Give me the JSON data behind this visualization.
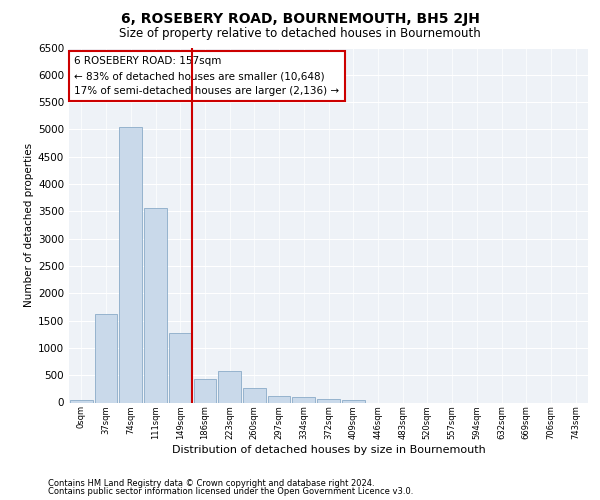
{
  "title": "6, ROSEBERY ROAD, BOURNEMOUTH, BH5 2JH",
  "subtitle": "Size of property relative to detached houses in Bournemouth",
  "xlabel": "Distribution of detached houses by size in Bournemouth",
  "ylabel": "Number of detached properties",
  "bar_color": "#c9d9ea",
  "bar_edge_color": "#8aabc8",
  "plot_bg_color": "#eef2f7",
  "grid_color": "#ffffff",
  "vline_color": "#cc0000",
  "vline_x_idx": 4,
  "annotation_text": "6 ROSEBERY ROAD: 157sqm\n← 83% of detached houses are smaller (10,648)\n17% of semi-detached houses are larger (2,136) →",
  "footnote1": "Contains HM Land Registry data © Crown copyright and database right 2024.",
  "footnote2": "Contains public sector information licensed under the Open Government Licence v3.0.",
  "categories": [
    "0sqm",
    "37sqm",
    "74sqm",
    "111sqm",
    "149sqm",
    "186sqm",
    "223sqm",
    "260sqm",
    "297sqm",
    "334sqm",
    "372sqm",
    "409sqm",
    "446sqm",
    "483sqm",
    "520sqm",
    "557sqm",
    "594sqm",
    "632sqm",
    "669sqm",
    "706sqm",
    "743sqm"
  ],
  "values": [
    50,
    1620,
    5050,
    3570,
    1280,
    430,
    580,
    270,
    110,
    100,
    60,
    50,
    0,
    0,
    0,
    0,
    0,
    0,
    0,
    0,
    0
  ],
  "ylim": [
    0,
    6500
  ],
  "yticks": [
    0,
    500,
    1000,
    1500,
    2000,
    2500,
    3000,
    3500,
    4000,
    4500,
    5000,
    5500,
    6000,
    6500
  ],
  "title_fontsize": 10,
  "subtitle_fontsize": 8.5,
  "ylabel_fontsize": 7.5,
  "xlabel_fontsize": 8,
  "ytick_fontsize": 7.5,
  "xtick_fontsize": 6,
  "footnote_fontsize": 6,
  "annot_fontsize": 7.5
}
